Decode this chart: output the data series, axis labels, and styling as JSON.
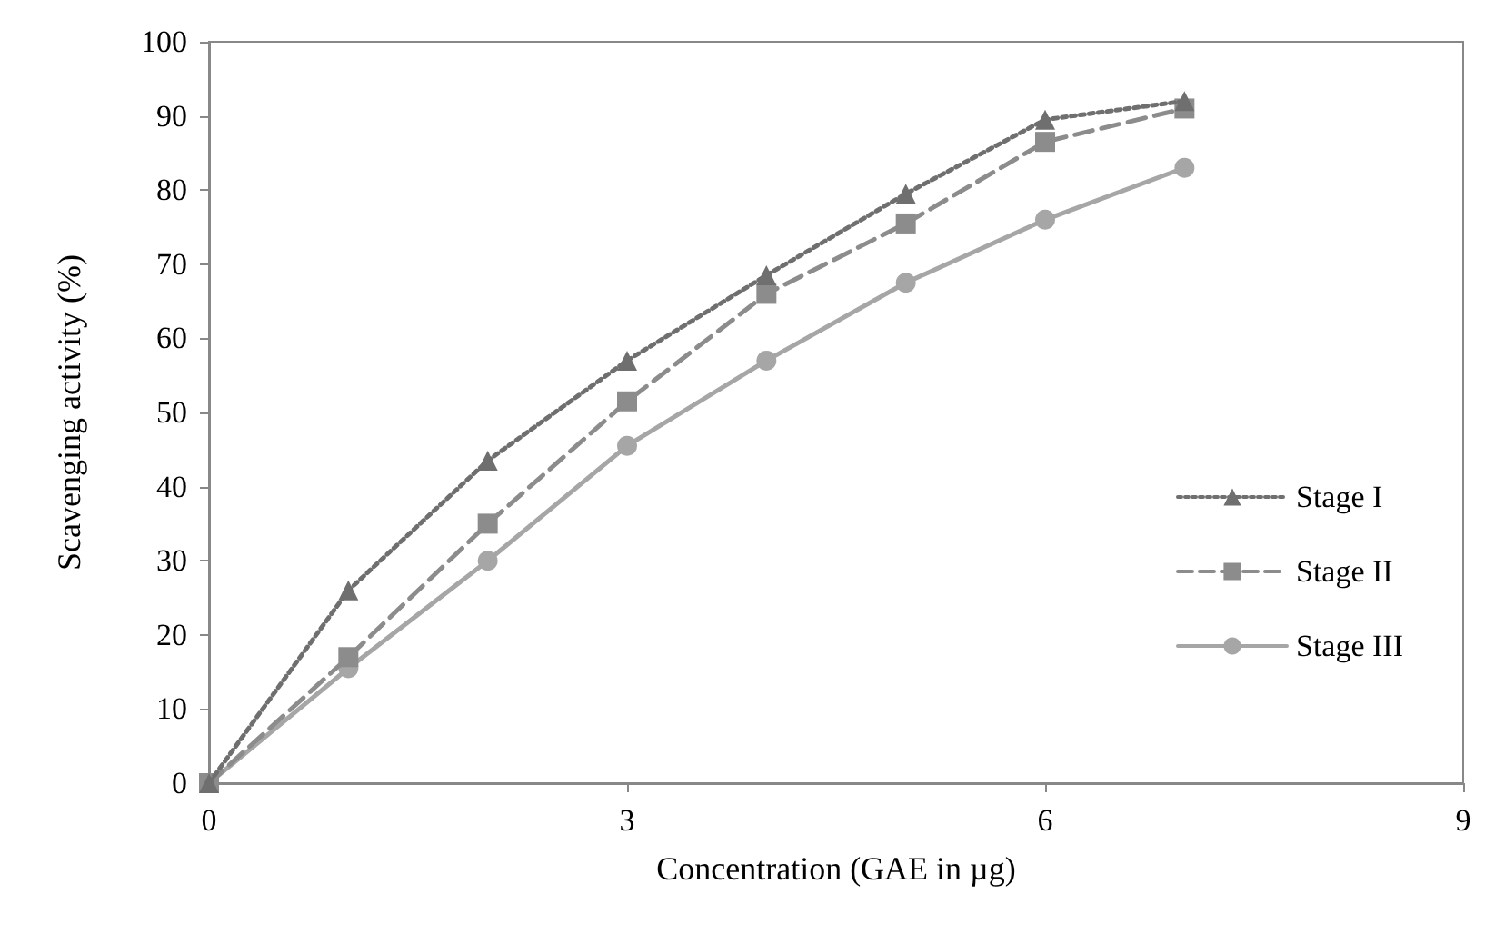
{
  "chart_data": {
    "type": "line",
    "xlabel": "Concentration (GAE in µg)",
    "ylabel": "Scavenging activity (%)",
    "x": [
      0,
      1,
      2,
      3,
      4,
      5,
      6,
      7
    ],
    "series": [
      {
        "name": "Stage I",
        "color": "#6f6f6f",
        "marker": "triangle",
        "line_style": "dotted",
        "values": [
          0,
          26,
          43.5,
          57,
          68.5,
          79.5,
          89.5,
          92
        ]
      },
      {
        "name": "Stage II",
        "color": "#8c8c8c",
        "marker": "square",
        "line_style": "dashed",
        "values": [
          0,
          17,
          35,
          51.5,
          66,
          75.5,
          86.5,
          91
        ]
      },
      {
        "name": "Stage III",
        "color": "#a6a6a6",
        "marker": "circle",
        "line_style": "solid",
        "values": [
          0,
          15.5,
          30,
          45.5,
          57,
          67.5,
          76,
          83
        ]
      }
    ],
    "xlim": [
      0,
      9
    ],
    "xticks": [
      0,
      3,
      6,
      9
    ],
    "ylim": [
      0,
      100
    ],
    "yticks": [
      0,
      10,
      20,
      30,
      40,
      50,
      60,
      70,
      80,
      90,
      100
    ],
    "grid": false,
    "legend": "right"
  }
}
